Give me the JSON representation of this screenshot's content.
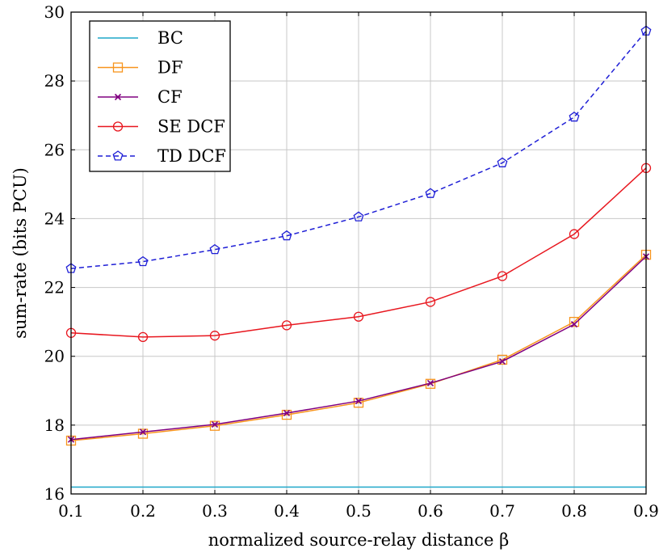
{
  "chart_data": {
    "type": "line",
    "xlabel": "normalized source-relay distance β",
    "ylabel": "sum-rate (bits PCU)",
    "xlim": [
      0.1,
      0.9
    ],
    "ylim": [
      16,
      30
    ],
    "x": [
      0.1,
      0.2,
      0.3,
      0.4,
      0.5,
      0.6,
      0.7,
      0.8,
      0.9
    ],
    "x_tick_labels": [
      "0.1",
      "0.2",
      "0.3",
      "0.4",
      "0.5",
      "0.6",
      "0.7",
      "0.8",
      "0.9"
    ],
    "y_ticks": [
      16,
      18,
      20,
      22,
      24,
      26,
      28,
      30
    ],
    "y_tick_labels": [
      "16",
      "18",
      "20",
      "22",
      "24",
      "26",
      "28",
      "30"
    ],
    "grid": true,
    "legend_position": "top-left",
    "series": [
      {
        "name": "BC",
        "color": "#1fa7c9",
        "marker": "none",
        "dash": "solid",
        "values": [
          16.2,
          16.2,
          16.2,
          16.2,
          16.2,
          16.2,
          16.2,
          16.2,
          16.2
        ]
      },
      {
        "name": "DF",
        "color": "#f7941d",
        "marker": "square",
        "dash": "solid",
        "values": [
          17.55,
          17.75,
          17.98,
          18.3,
          18.65,
          19.2,
          19.9,
          21.0,
          22.95
        ]
      },
      {
        "name": "CF",
        "color": "#800080",
        "marker": "x",
        "dash": "solid",
        "values": [
          17.58,
          17.8,
          18.02,
          18.35,
          18.7,
          19.22,
          19.85,
          20.93,
          22.9
        ]
      },
      {
        "name": "SE DCF",
        "color": "#e8171f",
        "marker": "circle",
        "dash": "solid",
        "values": [
          20.68,
          20.56,
          20.6,
          20.9,
          21.15,
          21.58,
          22.33,
          23.55,
          25.47
        ]
      },
      {
        "name": "TD DCF",
        "color": "#1f1fd6",
        "marker": "pentagon",
        "dash": "dashed",
        "values": [
          22.55,
          22.75,
          23.1,
          23.5,
          24.05,
          24.73,
          25.62,
          26.95,
          29.45
        ]
      }
    ]
  }
}
